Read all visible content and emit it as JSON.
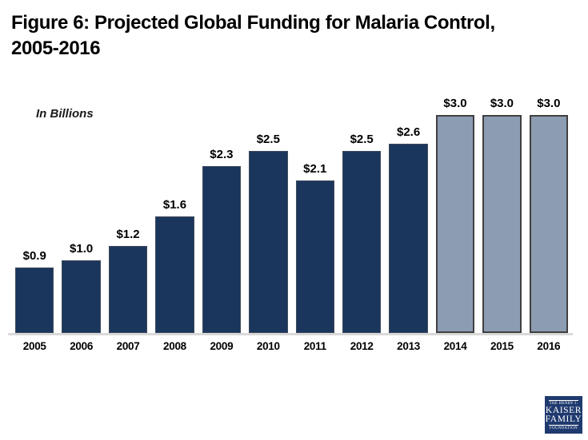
{
  "title_lines": [
    "Figure 6: Projected Global Funding for Malaria Control,",
    "2005-2016"
  ],
  "chart_data": {
    "type": "bar",
    "title": "Figure 6: Projected Global Funding for Malaria Control, 2005-2016",
    "unit_label": "In Billions",
    "categories": [
      "2005",
      "2006",
      "2007",
      "2008",
      "2009",
      "2010",
      "2011",
      "2012",
      "2013",
      "2014",
      "2015",
      "2016"
    ],
    "values": [
      0.9,
      1.0,
      1.2,
      1.6,
      2.3,
      2.5,
      2.1,
      2.5,
      2.6,
      3.0,
      3.0,
      3.0
    ],
    "value_labels": [
      "$0.9",
      "$1.0",
      "$1.2",
      "$1.6",
      "$2.3",
      "$2.5",
      "$2.1",
      "$2.5",
      "$2.6",
      "$3.0",
      "$3.0",
      "$3.0"
    ],
    "projected_from_index": 9,
    "ylim": [
      0,
      3.0
    ],
    "xlabel": "",
    "ylabel": "In Billions",
    "grid": false,
    "legend": "none",
    "colors": {
      "actual": "#1B365D",
      "projected": "#8C9DB3",
      "projected_border": "#404040",
      "axis_line": "#D9D9D9"
    }
  },
  "logo": {
    "bg_color": "#1F3A6E",
    "lines": [
      "THE HENRY J.",
      "KAISER",
      "FAMILY",
      "FOUNDATION"
    ]
  }
}
